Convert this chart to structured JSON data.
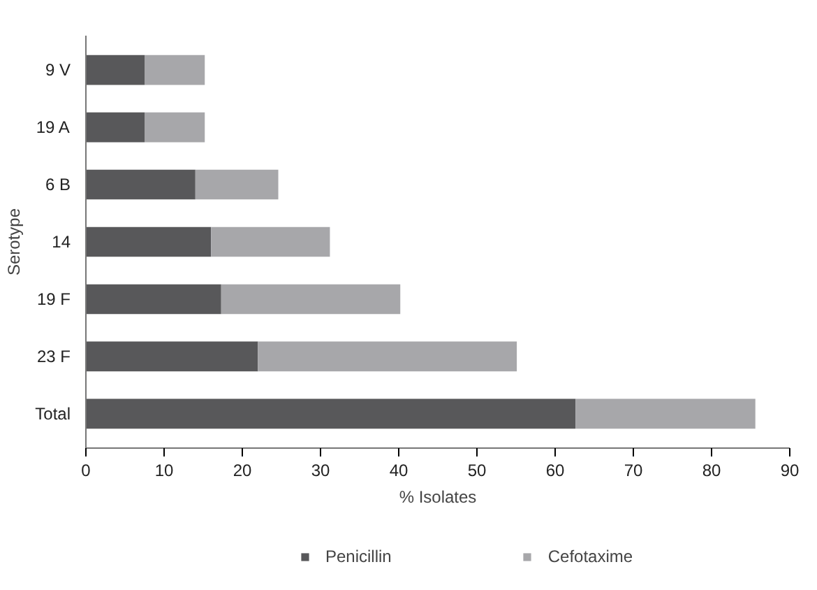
{
  "chart_data": {
    "type": "bar",
    "orientation": "horizontal",
    "stacked": true,
    "categories": [
      "9 V",
      "19 A",
      "6 B",
      "14",
      "19 F",
      "23 F",
      "Total"
    ],
    "series": [
      {
        "name": "Penicillin",
        "color": "#58585a",
        "values": [
          7.5,
          7.5,
          14.0,
          16.0,
          17.3,
          22.0,
          62.6
        ]
      },
      {
        "name": "Cefotaxime",
        "color": "#a7a7aa",
        "values": [
          7.7,
          7.7,
          10.6,
          15.2,
          22.9,
          33.1,
          23.0
        ]
      }
    ],
    "xlim": [
      0,
      90
    ],
    "xticks": [
      0,
      10,
      20,
      30,
      40,
      50,
      60,
      70,
      80,
      90
    ],
    "xlabel": "% Isolates",
    "ylabel": "Serotype",
    "grid": false,
    "legend": "bottom"
  }
}
